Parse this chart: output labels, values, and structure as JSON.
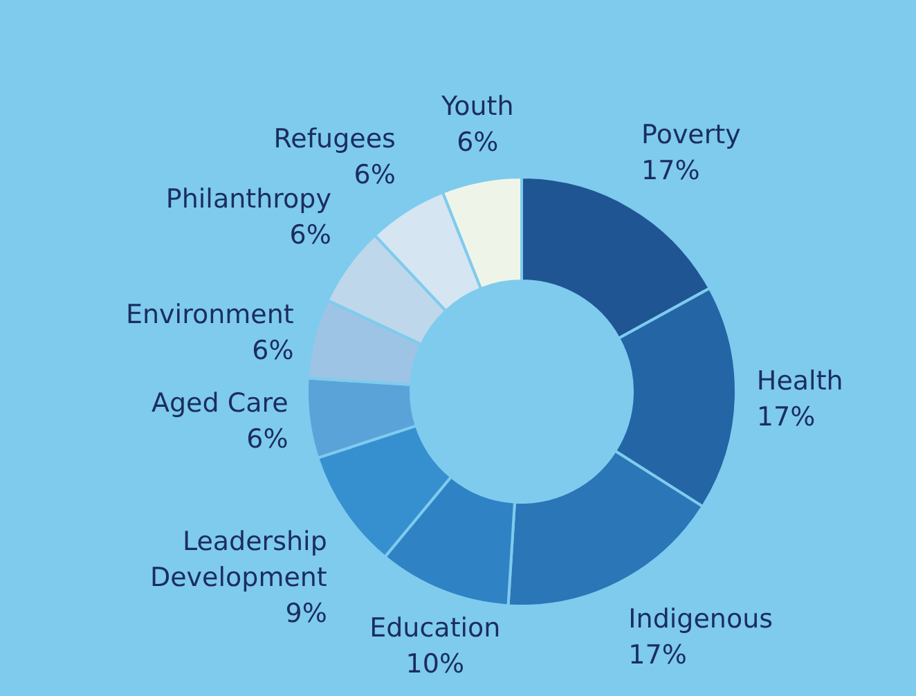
{
  "chart_data": {
    "type": "donut",
    "categories": [
      "Poverty",
      "Health",
      "Indigenous",
      "Education",
      "Leadership\nDevelopment",
      "Aged Care",
      "Environment",
      "Philanthropy",
      "Refugees",
      "Youth"
    ],
    "values": [
      17,
      17,
      17,
      10,
      9,
      6,
      6,
      6,
      6,
      6
    ],
    "value_labels": [
      "17%",
      "17%",
      "17%",
      "10%",
      "9%",
      "6%",
      "6%",
      "6%",
      "6%",
      "6%"
    ],
    "colors": [
      "#1f5593",
      "#2465a6",
      "#2a76b6",
      "#2f82c4",
      "#3690d0",
      "#5aa3d9",
      "#9dc4e4",
      "#bfd7ea",
      "#d5e5f1",
      "#eef5e8"
    ],
    "legend": false
  }
}
